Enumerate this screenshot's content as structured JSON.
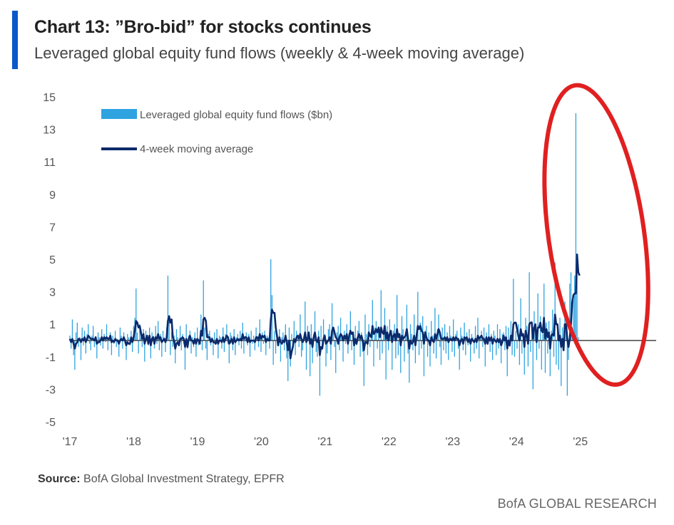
{
  "header": {
    "title": "Chart 13: ”Bro-bid” for stocks continues",
    "subtitle": "Leveraged global equity fund flows (weekly & 4-week moving average)"
  },
  "footer": {
    "source_label": "Source:",
    "source_text": "BofA Global Investment Strategy, EPFR",
    "brand": "BofA GLOBAL RESEARCH"
  },
  "colors": {
    "accent": "#0a58ca",
    "weekly": "#2ea3e0",
    "moving_average": "#0b2a6b",
    "zero_line": "#444444",
    "highlight": "#e02020"
  },
  "chart_data": {
    "type": "bar",
    "title": "Chart 13: ”Bro-bid” for stocks continues",
    "subtitle": "Leveraged global equity fund flows (weekly & 4-week moving average)",
    "xlabel": "",
    "ylabel": "",
    "ylim": [
      -5,
      15
    ],
    "xlim": [
      2017,
      2026.3
    ],
    "y_ticks": [
      15,
      13,
      11,
      9,
      7,
      5,
      3,
      1,
      -1,
      -3,
      -5
    ],
    "x_ticks": [
      {
        "label": "'17",
        "value": 2017
      },
      {
        "label": "'18",
        "value": 2018
      },
      {
        "label": "'19",
        "value": 2019
      },
      {
        "label": "'20",
        "value": 2020
      },
      {
        "label": "'21",
        "value": 2021
      },
      {
        "label": "'22",
        "value": 2022
      },
      {
        "label": "'23",
        "value": 2023
      },
      {
        "label": "'24",
        "value": 2024
      },
      {
        "label": "'25",
        "value": 2025
      }
    ],
    "legend": {
      "placement": "top-left",
      "entries": [
        {
          "name": "Leveraged global equity fund flows ($bn)",
          "kind": "bar"
        },
        {
          "name": "4-week moving average",
          "kind": "line"
        }
      ]
    },
    "annotation": {
      "type": "ellipse",
      "description": "highlight of 2025 spike",
      "x_range": [
        2024.5,
        2026.0
      ],
      "y_range": [
        -2.8,
        15.8
      ]
    },
    "weekly_step_years": 0.0192,
    "weekly_flows": [
      0.3,
      -0.5,
      1.3,
      -0.9,
      -1.8,
      0.5,
      1.1,
      -0.4,
      0.2,
      -1.2,
      0.8,
      -0.3,
      0.6,
      -0.8,
      0.4,
      1.0,
      -0.2,
      -0.6,
      0.3,
      0.9,
      -0.4,
      0.1,
      -1.1,
      0.5,
      0.2,
      -0.3,
      0.7,
      -0.5,
      0.4,
      -0.1,
      1.0,
      -0.6,
      0.2,
      0.5,
      -0.9,
      0.3,
      -0.2,
      0.6,
      -0.4,
      0.1,
      -1.0,
      0.8,
      0.3,
      -0.5,
      0.5,
      -0.2,
      -1.2,
      0.4,
      0.2,
      -0.3,
      0.6,
      -0.7,
      0.9,
      1.4,
      3.2,
      0.5,
      -0.8,
      1.0,
      0.2,
      -0.4,
      0.7,
      -1.3,
      0.6,
      0.2,
      -0.3,
      0.8,
      -1.1,
      0.5,
      0.3,
      -0.5,
      0.9,
      -0.2,
      1.2,
      -0.6,
      0.4,
      -1.0,
      0.6,
      0.2,
      -0.7,
      0.8,
      4.0,
      1.5,
      -0.9,
      0.5,
      -0.4,
      0.3,
      -1.4,
      0.7,
      0.2,
      -0.3,
      0.9,
      -0.6,
      0.4,
      -0.2,
      -1.8,
      1.0,
      -0.5,
      0.3,
      0.6,
      -0.8,
      0.2,
      -0.4,
      0.5,
      -1.0,
      0.8,
      -0.3,
      0.1,
      1.6,
      -0.6,
      3.7,
      0.8,
      -0.5,
      -1.2,
      0.4,
      0.6,
      -0.3,
      0.2,
      -0.9,
      0.5,
      -0.2,
      0.7,
      -1.1,
      0.3,
      0.2,
      -0.5,
      0.8,
      -0.7,
      0.4,
      1.0,
      -0.2,
      -1.4,
      0.5,
      0.3,
      -0.6,
      0.7,
      -0.9,
      0.2,
      0.4,
      -0.3,
      0.6,
      -0.5,
      1.1,
      -0.8,
      0.2,
      0.5,
      -0.3,
      0.4,
      -1.0,
      0.6,
      -0.2,
      0.3,
      -0.6,
      0.8,
      0.1,
      -0.4,
      1.3,
      -0.7,
      0.5,
      -0.2,
      0.6,
      -0.9,
      0.3,
      0.2,
      -0.5,
      5.0,
      2.8,
      -1.5,
      0.6,
      -0.8,
      0.4,
      -0.3,
      0.7,
      -1.3,
      0.2,
      0.5,
      -0.6,
      1.0,
      -1.1,
      -2.5,
      0.8,
      -1.6,
      0.4,
      -0.2,
      1.2,
      -0.9,
      0.6,
      0.3,
      -0.4,
      1.6,
      -1.0,
      -0.6,
      0.2,
      2.4,
      -1.8,
      0.9,
      0.5,
      -2.2,
      1.0,
      -1.4,
      0.4,
      1.8,
      -0.7,
      -1.0,
      0.6,
      -3.4,
      0.9,
      -0.5,
      1.3,
      0.4,
      -1.6,
      -0.8,
      0.7,
      1.0,
      -1.2,
      2.3,
      0.8,
      -0.4,
      -2.0,
      0.5,
      0.9,
      -0.6,
      1.4,
      0.3,
      -1.3,
      0.6,
      -0.2,
      1.0,
      -0.8,
      0.4,
      1.8,
      -0.6,
      0.2,
      -1.5,
      0.9,
      -0.3,
      0.6,
      1.2,
      -1.0,
      0.5,
      -0.7,
      -2.8,
      1.6,
      0.4,
      -0.9,
      1.0,
      -0.4,
      0.3,
      2.5,
      -1.6,
      0.8,
      1.2,
      -0.5,
      0.6,
      -1.2,
      3.1,
      -0.8,
      0.5,
      2.0,
      -2.4,
      0.9,
      -0.6,
      1.3,
      0.4,
      -1.8,
      0.6,
      1.0,
      -1.1,
      2.8,
      -0.9,
      0.4,
      -2.0,
      1.5,
      0.7,
      -1.3,
      0.5,
      2.2,
      -0.8,
      -2.6,
      1.0,
      0.4,
      -0.6,
      1.6,
      -1.4,
      0.3,
      3.0,
      -0.9,
      1.1,
      -0.5,
      1.5,
      -2.2,
      0.6,
      0.9,
      -1.0,
      0.5,
      -1.6,
      1.2,
      0.3,
      -0.8,
      2.0,
      -1.1,
      0.7,
      1.6,
      -0.4,
      -1.5,
      0.8,
      -0.6,
      1.0,
      -0.8,
      0.5,
      -1.2,
      0.9,
      0.3,
      -0.7,
      1.3,
      -1.0,
      0.4,
      0.6,
      -0.5,
      -1.8,
      0.8,
      0.3,
      -0.6,
      1.1,
      -0.9,
      0.5,
      -0.3,
      0.7,
      -1.3,
      0.4,
      0.2,
      -0.8,
      0.9,
      -0.5,
      1.4,
      -1.1,
      0.3,
      0.6,
      -0.4,
      0.8,
      -1.6,
      0.5,
      -0.2,
      1.0,
      -0.7,
      0.4,
      -1.2,
      0.6,
      0.3,
      -0.9,
      1.0,
      -0.5,
      0.7,
      -1.4,
      0.4,
      0.5,
      -0.6,
      0.9,
      -2.2,
      0.8,
      -0.4,
      1.2,
      -0.9,
      3.8,
      -1.0,
      0.6,
      -0.5,
      1.0,
      -1.5,
      2.6,
      -0.8,
      0.4,
      -2.1,
      1.4,
      0.9,
      -1.6,
      4.2,
      -0.7,
      1.2,
      -3.0,
      1.8,
      0.8,
      -1.2,
      2.9,
      -0.5,
      1.5,
      -1.8,
      0.4,
      3.5,
      -2.0,
      1.1,
      -0.8,
      1.2,
      -2.2,
      0.6,
      1.9,
      -1.0,
      4.8,
      -1.5,
      0.7,
      -1.8,
      1.4,
      -2.8,
      0.8,
      -0.6,
      2.4,
      1.6,
      -3.4,
      -1.2,
      3.5,
      4.2,
      0.8,
      2.5,
      4.0,
      14.0,
      4.5,
      0.2
    ],
    "moving_average": [
      0.1,
      -0.1,
      0.1,
      -0.2,
      -0.5,
      -0.2,
      -0.1,
      0.1,
      0.1,
      -0.1,
      0.1,
      0.0,
      0.2,
      -0.1,
      0.1,
      0.3,
      0.2,
      0.1,
      0.1,
      0.1,
      0.0,
      0.2,
      -0.2,
      -0.1,
      -0.1,
      0.0,
      0.2,
      0.0,
      0.2,
      0.1,
      0.2,
      0.1,
      0.1,
      0.3,
      -0.1,
      0.0,
      -0.1,
      0.1,
      0.0,
      0.0,
      -0.2,
      0.0,
      0.1,
      0.0,
      0.2,
      0.0,
      -0.3,
      -0.1,
      -0.2,
      -0.2,
      0.2,
      -0.1,
      0.2,
      0.6,
      1.2,
      1.1,
      0.8,
      0.9,
      0.5,
      0.1,
      0.4,
      -0.2,
      0.1,
      0.3,
      -0.2,
      0.3,
      -0.3,
      0.1,
      0.2,
      -0.2,
      0.2,
      0.1,
      0.4,
      0.1,
      0.2,
      -0.1,
      0.0,
      0.1,
      -0.1,
      0.2,
      1.2,
      1.5,
      1.1,
      1.3,
      0.2,
      0.0,
      -0.5,
      -0.2,
      -0.1,
      -0.3,
      0.1,
      0.1,
      0.2,
      0.1,
      -0.4,
      0.1,
      -0.4,
      0.1,
      0.3,
      0.0,
      0.0,
      -0.2,
      0.1,
      -0.2,
      0.1,
      0.0,
      -0.2,
      0.6,
      0.3,
      1.3,
      1.4,
      1.2,
      0.2,
      0.2,
      0.2,
      -0.1,
      0.1,
      -0.1,
      -0.1,
      -0.2,
      0.1,
      -0.2,
      0.0,
      0.0,
      -0.1,
      0.2,
      -0.1,
      0.1,
      0.3,
      0.2,
      -0.2,
      -0.1,
      0.1,
      -0.2,
      0.2,
      -0.1,
      0.0,
      0.1,
      0.0,
      0.1,
      0.0,
      0.4,
      0.1,
      0.2,
      0.2,
      -0.1,
      0.2,
      -0.1,
      0.0,
      0.0,
      0.0,
      -0.1,
      0.2,
      0.2,
      0.0,
      0.4,
      0.1,
      0.3,
      0.2,
      0.3,
      -0.1,
      0.1,
      0.0,
      0.0,
      1.3,
      1.9,
      1.7,
      1.7,
      0.8,
      0.3,
      -0.3,
      0.2,
      -0.1,
      -0.2,
      0.0,
      -0.1,
      0.3,
      -0.1,
      -0.6,
      0.0,
      -1.1,
      -0.7,
      -0.4,
      0.1,
      -0.1,
      0.2,
      0.3,
      0.1,
      0.4,
      0.1,
      -0.1,
      0.1,
      0.5,
      -0.1,
      0.1,
      0.5,
      -0.2,
      0.1,
      -0.4,
      0.2,
      0.5,
      0.0,
      -0.1,
      0.2,
      -0.9,
      -0.4,
      -0.5,
      0.1,
      0.3,
      -0.2,
      -0.1,
      0.0,
      0.2,
      -0.2,
      0.6,
      0.8,
      0.5,
      0.2,
      0.1,
      -0.2,
      0.2,
      0.4,
      0.3,
      0.0,
      0.3,
      0.1,
      0.4,
      -0.2,
      0.3,
      0.6,
      0.4,
      0.5,
      -0.3,
      0.1,
      -0.2,
      0.2,
      0.4,
      0.1,
      0.3,
      0.0,
      -0.6,
      -0.1,
      -0.1,
      -0.2,
      0.5,
      0.3,
      0.2,
      0.9,
      0.4,
      0.5,
      0.7,
      0.5,
      0.8,
      0.2,
      0.8,
      0.5,
      0.4,
      0.9,
      0.1,
      0.5,
      0.0,
      0.4,
      0.6,
      -0.1,
      0.3,
      0.4,
      0.0,
      0.7,
      0.2,
      0.4,
      -0.3,
      0.3,
      0.1,
      0.2,
      0.3,
      0.7,
      0.1,
      -0.5,
      0.0,
      -0.2,
      -0.1,
      0.3,
      -0.3,
      0.3,
      0.9,
      0.7,
      0.9,
      0.6,
      0.5,
      -0.2,
      0.5,
      0.2,
      0.0,
      0.0,
      -0.3,
      0.2,
      0.0,
      -0.1,
      0.4,
      0.1,
      0.4,
      0.7,
      0.5,
      0.1,
      0.1,
      0.1,
      0.2,
      0.0,
      0.2,
      -0.1,
      0.1,
      0.1,
      0.0,
      0.2,
      0.0,
      0.2,
      0.1,
      0.1,
      -0.3,
      0.0,
      0.1,
      -0.2,
      0.2,
      0.1,
      0.2,
      -0.1,
      0.1,
      -0.2,
      0.1,
      0.0,
      -0.1,
      0.1,
      -0.1,
      0.3,
      0.1,
      0.2,
      0.3,
      0.1,
      0.1,
      -0.2,
      0.2,
      -0.2,
      0.2,
      0.0,
      0.2,
      -0.2,
      0.1,
      0.0,
      -0.1,
      0.1,
      -0.1,
      0.1,
      -0.3,
      -0.1,
      0.3,
      0.0,
      0.2,
      -0.5,
      0.0,
      -0.3,
      0.3,
      0.0,
      1.0,
      1.1,
      1.1,
      0.7,
      0.3,
      0.0,
      0.7,
      0.3,
      0.4,
      -0.4,
      0.6,
      0.3,
      -0.2,
      1.0,
      1.1,
      1.1,
      0.1,
      0.8,
      1.0,
      -0.1,
      0.8,
      0.8,
      1.1,
      0.6,
      0.5,
      1.4,
      0.1,
      0.7,
      0.2,
      0.5,
      -0.5,
      0.3,
      0.4,
      0.3,
      1.6,
      1.0,
      1.0,
      0.0,
      0.3,
      -0.4,
      0.1,
      -0.6,
      1.0,
      1.0,
      0.1,
      -0.4,
      0.1,
      1.0,
      2.3,
      2.8,
      2.9,
      2.9,
      5.3,
      4.2,
      4.0
    ]
  }
}
